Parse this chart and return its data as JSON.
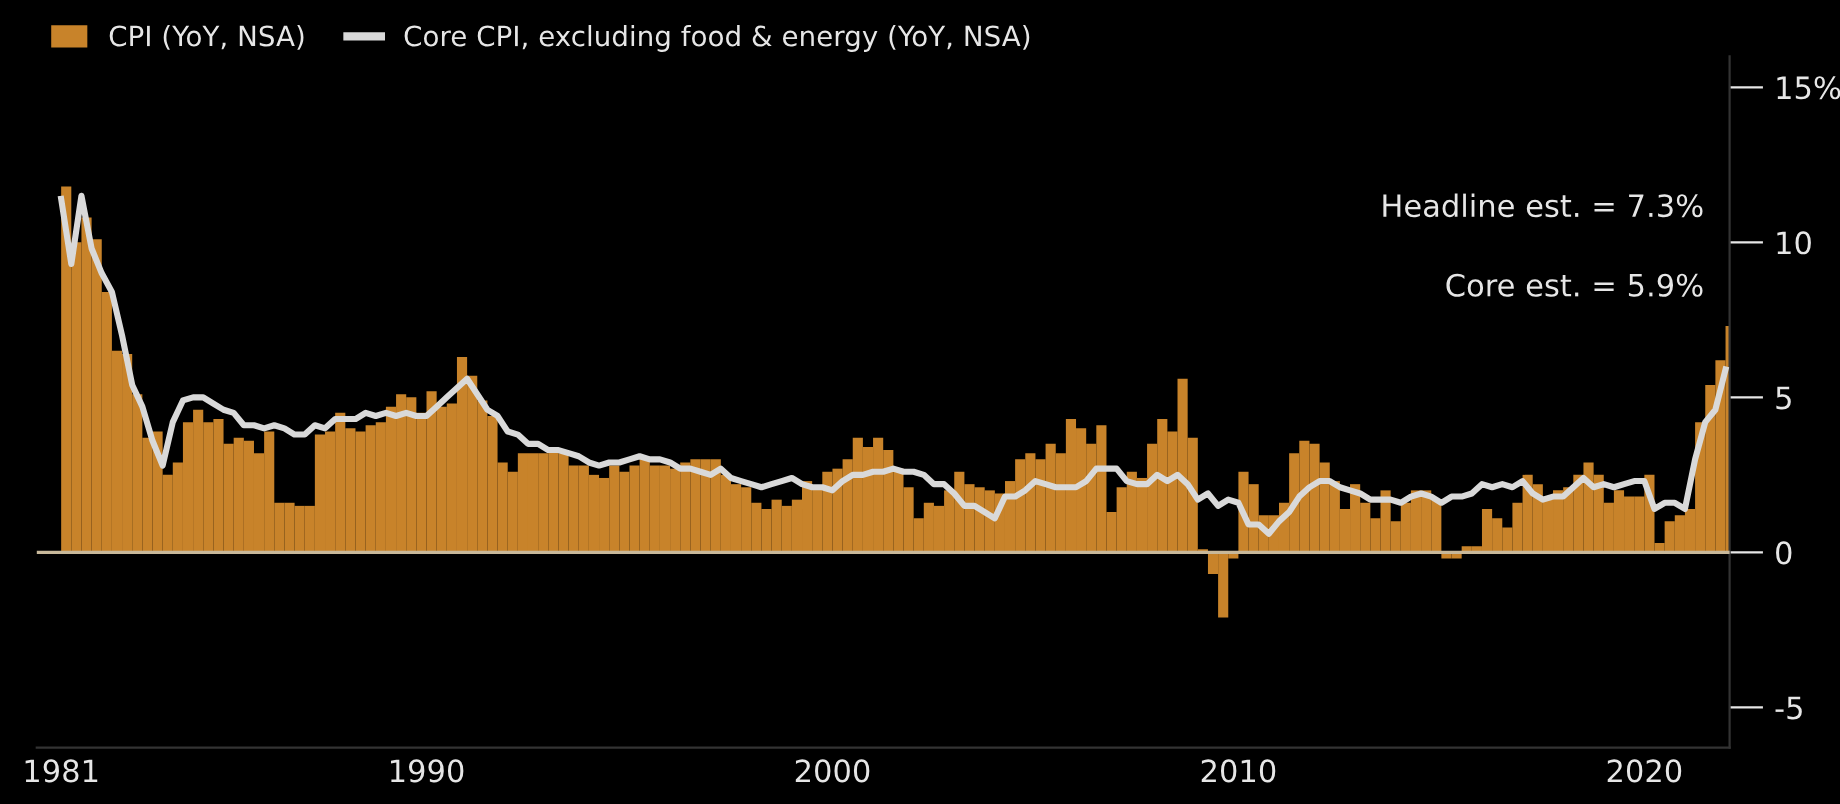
{
  "chart_data": {
    "type": "bar",
    "x": [
      1981.0,
      1981.25,
      1981.5,
      1981.75,
      1982.0,
      1982.25,
      1982.5,
      1982.75,
      1983.0,
      1983.25,
      1983.5,
      1983.75,
      1984.0,
      1984.25,
      1984.5,
      1984.75,
      1985.0,
      1985.25,
      1985.5,
      1985.75,
      1986.0,
      1986.25,
      1986.5,
      1986.75,
      1987.0,
      1987.25,
      1987.5,
      1987.75,
      1988.0,
      1988.25,
      1988.5,
      1988.75,
      1989.0,
      1989.25,
      1989.5,
      1989.75,
      1990.0,
      1990.25,
      1990.5,
      1990.75,
      1991.0,
      1991.25,
      1991.5,
      1991.75,
      1992.0,
      1992.25,
      1992.5,
      1992.75,
      1993.0,
      1993.25,
      1993.5,
      1993.75,
      1994.0,
      1994.25,
      1994.5,
      1994.75,
      1995.0,
      1995.25,
      1995.5,
      1995.75,
      1996.0,
      1996.25,
      1996.5,
      1996.75,
      1997.0,
      1997.25,
      1997.5,
      1997.75,
      1998.0,
      1998.25,
      1998.5,
      1998.75,
      1999.0,
      1999.25,
      1999.5,
      1999.75,
      2000.0,
      2000.25,
      2000.5,
      2000.75,
      2001.0,
      2001.25,
      2001.5,
      2001.75,
      2002.0,
      2002.25,
      2002.5,
      2002.75,
      2003.0,
      2003.25,
      2003.5,
      2003.75,
      2004.0,
      2004.25,
      2004.5,
      2004.75,
      2005.0,
      2005.25,
      2005.5,
      2005.75,
      2006.0,
      2006.25,
      2006.5,
      2006.75,
      2007.0,
      2007.25,
      2007.5,
      2007.75,
      2008.0,
      2008.25,
      2008.5,
      2008.75,
      2009.0,
      2009.25,
      2009.5,
      2009.75,
      2010.0,
      2010.25,
      2010.5,
      2010.75,
      2011.0,
      2011.25,
      2011.5,
      2011.75,
      2012.0,
      2012.25,
      2012.5,
      2012.75,
      2013.0,
      2013.25,
      2013.5,
      2013.75,
      2014.0,
      2014.25,
      2014.5,
      2014.75,
      2015.0,
      2015.25,
      2015.5,
      2015.75,
      2016.0,
      2016.25,
      2016.5,
      2016.75,
      2017.0,
      2017.25,
      2017.5,
      2017.75,
      2018.0,
      2018.25,
      2018.5,
      2018.75,
      2019.0,
      2019.25,
      2019.5,
      2019.75,
      2020.0,
      2020.25,
      2020.5,
      2020.75,
      2021.0,
      2021.25,
      2021.5,
      2021.75,
      2022.0
    ],
    "series": [
      {
        "name": "CPI (YoY, NSA)",
        "color": "#c8832a",
        "values": [
          11.8,
          10.0,
          10.8,
          10.1,
          8.4,
          6.5,
          6.4,
          5.1,
          3.7,
          3.9,
          2.5,
          2.9,
          4.2,
          4.6,
          4.2,
          4.3,
          3.5,
          3.7,
          3.6,
          3.2,
          3.9,
          1.6,
          1.6,
          1.5,
          1.5,
          3.8,
          3.9,
          4.5,
          4.0,
          3.9,
          4.1,
          4.2,
          4.7,
          5.1,
          5.0,
          4.5,
          5.2,
          4.7,
          4.8,
          6.3,
          5.7,
          4.9,
          4.4,
          2.9,
          2.6,
          3.2,
          3.2,
          3.2,
          3.3,
          3.2,
          2.8,
          2.8,
          2.5,
          2.4,
          2.8,
          2.6,
          2.8,
          3.1,
          2.8,
          2.8,
          2.7,
          2.9,
          3.0,
          3.0,
          3.0,
          2.5,
          2.2,
          2.1,
          1.6,
          1.4,
          1.7,
          1.5,
          1.7,
          2.3,
          2.1,
          2.6,
          2.7,
          3.0,
          3.7,
          3.4,
          3.7,
          3.3,
          2.7,
          2.1,
          1.1,
          1.6,
          1.5,
          2.0,
          2.6,
          2.2,
          2.1,
          2.0,
          1.9,
          2.3,
          3.0,
          3.2,
          3.0,
          3.5,
          3.2,
          4.3,
          4.0,
          3.5,
          4.1,
          1.3,
          2.1,
          2.6,
          2.4,
          3.5,
          4.3,
          3.9,
          5.6,
          3.7,
          0.1,
          -0.7,
          -2.1,
          -0.2,
          2.6,
          2.2,
          1.2,
          1.2,
          1.6,
          3.2,
          3.6,
          3.5,
          2.9,
          2.3,
          1.4,
          2.2,
          1.6,
          1.1,
          2.0,
          1.0,
          1.6,
          2.0,
          2.0,
          1.7,
          -0.2,
          -0.2,
          0.2,
          0.2,
          1.4,
          1.1,
          0.8,
          1.6,
          2.5,
          2.2,
          1.7,
          2.0,
          2.1,
          2.5,
          2.9,
          2.5,
          1.6,
          2.0,
          1.8,
          1.8,
          2.5,
          0.3,
          1.0,
          1.2,
          1.4,
          4.2,
          5.4,
          6.2,
          7.3
        ]
      },
      {
        "name": "Core CPI, excluding food & energy (YoY, NSA)",
        "type": "line",
        "color": "#d9d9d9",
        "values": [
          11.4,
          9.3,
          11.5,
          9.8,
          9.0,
          8.4,
          7.0,
          5.4,
          4.7,
          3.6,
          2.8,
          4.2,
          4.9,
          5.0,
          5.0,
          4.8,
          4.6,
          4.5,
          4.1,
          4.1,
          4.0,
          4.1,
          4.0,
          3.8,
          3.8,
          4.1,
          4.0,
          4.3,
          4.3,
          4.3,
          4.5,
          4.4,
          4.5,
          4.4,
          4.5,
          4.4,
          4.4,
          4.7,
          5.0,
          5.3,
          5.6,
          5.1,
          4.6,
          4.4,
          3.9,
          3.8,
          3.5,
          3.5,
          3.3,
          3.3,
          3.2,
          3.1,
          2.9,
          2.8,
          2.9,
          2.9,
          3.0,
          3.1,
          3.0,
          3.0,
          2.9,
          2.7,
          2.7,
          2.6,
          2.5,
          2.7,
          2.4,
          2.3,
          2.2,
          2.1,
          2.2,
          2.3,
          2.4,
          2.2,
          2.1,
          2.1,
          2.0,
          2.3,
          2.5,
          2.5,
          2.6,
          2.6,
          2.7,
          2.6,
          2.6,
          2.5,
          2.2,
          2.2,
          1.9,
          1.5,
          1.5,
          1.3,
          1.1,
          1.8,
          1.8,
          2.0,
          2.3,
          2.2,
          2.1,
          2.1,
          2.1,
          2.3,
          2.7,
          2.7,
          2.7,
          2.3,
          2.2,
          2.2,
          2.5,
          2.3,
          2.5,
          2.2,
          1.7,
          1.9,
          1.5,
          1.7,
          1.6,
          0.9,
          0.9,
          0.6,
          1.0,
          1.3,
          1.8,
          2.1,
          2.3,
          2.3,
          2.1,
          2.0,
          1.9,
          1.7,
          1.7,
          1.7,
          1.6,
          1.8,
          1.9,
          1.8,
          1.6,
          1.8,
          1.8,
          1.9,
          2.2,
          2.1,
          2.2,
          2.1,
          2.3,
          1.9,
          1.7,
          1.8,
          1.8,
          2.1,
          2.4,
          2.1,
          2.2,
          2.1,
          2.2,
          2.3,
          2.3,
          1.4,
          1.6,
          1.6,
          1.4,
          3.0,
          4.2,
          4.6,
          5.9
        ]
      }
    ],
    "xlim": [
      1980.4,
      2022.1
    ],
    "xticks": [
      1981,
      1990,
      2000,
      2010,
      2020
    ],
    "ylim": [
      -6.3,
      16
    ],
    "yticks": [
      -5,
      0,
      5,
      10,
      {
        "value": 15,
        "label": "15%"
      }
    ],
    "ref_lines": [
      {
        "axis": "y",
        "value": 0,
        "color": "#c8b89a"
      }
    ],
    "annotations": [
      "Headline est. = 7.3%",
      "Core est. = 5.9%"
    ],
    "legend": "top left",
    "grid": false
  }
}
